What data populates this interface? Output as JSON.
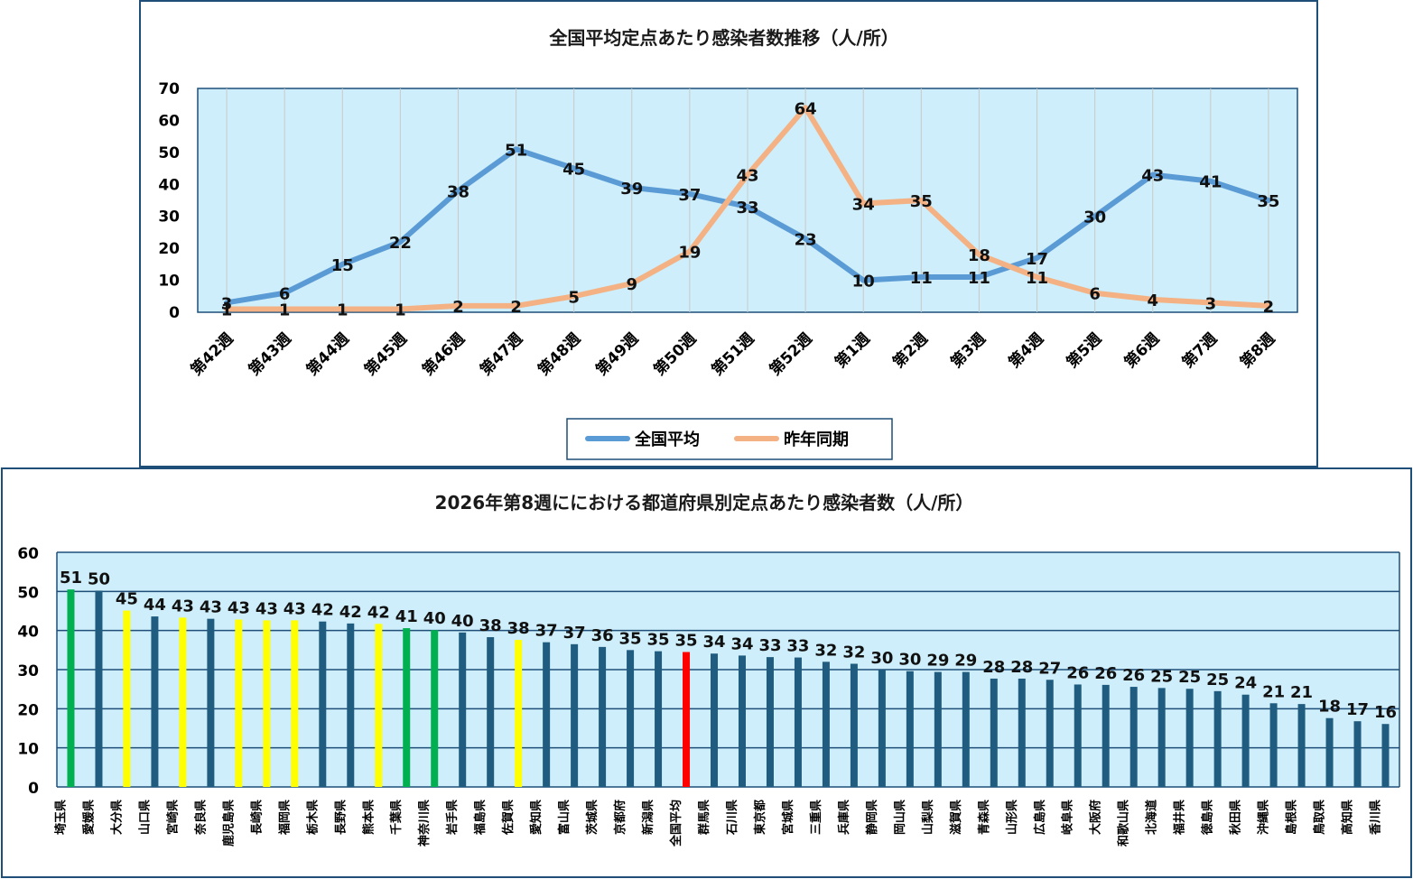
{
  "colors": {
    "plot_bg": "#cdeefa",
    "navy": "#1f4e79",
    "national_avg_line": "#5b9bd5",
    "last_year_line": "#f4b183",
    "bar_default": "#1f5c7f",
    "bar_green": "#00b050",
    "bar_yellow": "#ffff00",
    "bar_red": "#ff0000"
  },
  "chart_data": [
    {
      "type": "line",
      "title": "全国平均定点あたり感染者数推移（人/所）",
      "x": [
        "第42週",
        "第43週",
        "第44週",
        "第45週",
        "第46週",
        "第47週",
        "第48週",
        "第49週",
        "第50週",
        "第51週",
        "第52週",
        "第1週",
        "第2週",
        "第3週",
        "第4週",
        "第5週",
        "第6週",
        "第7週",
        "第8週"
      ],
      "series": [
        {
          "name": "全国平均",
          "color": "#5b9bd5",
          "values": [
            3,
            6,
            15,
            22,
            38,
            51,
            45,
            39,
            37,
            33,
            23,
            10,
            11,
            11,
            17,
            30,
            43,
            41,
            35
          ]
        },
        {
          "name": "昨年同期",
          "color": "#f4b183",
          "values": [
            1,
            1,
            1,
            1,
            2,
            2,
            5,
            9,
            19,
            43,
            64,
            34,
            35,
            18,
            11,
            6,
            4,
            3,
            2
          ]
        }
      ],
      "ylim": [
        0,
        70
      ],
      "yticks": [
        0,
        10,
        20,
        30,
        40,
        50,
        60,
        70
      ],
      "grid": false,
      "legend": "bottom"
    },
    {
      "type": "bar",
      "title": "2026年第8週ににおける都道府県別定点あたり感染者数（人/所）",
      "categories": [
        "埼玉県",
        "愛媛県",
        "大分県",
        "山口県",
        "宮崎県",
        "奈良県",
        "鹿児島県",
        "長崎県",
        "福岡県",
        "栃木県",
        "長野県",
        "熊本県",
        "千葉県",
        "神奈川県",
        "岩手県",
        "福島県",
        "佐賀県",
        "愛知県",
        "富山県",
        "茨城県",
        "京都府",
        "新潟県",
        "全国平均",
        "群馬県",
        "石川県",
        "東京都",
        "宮城県",
        "三重県",
        "兵庫県",
        "静岡県",
        "岡山県",
        "山梨県",
        "滋賀県",
        "青森県",
        "山形県",
        "広島県",
        "岐阜県",
        "大阪府",
        "和歌山県",
        "北海道",
        "福井県",
        "徳島県",
        "秋田県",
        "沖縄県",
        "島根県",
        "鳥取県",
        "高知県",
        "香川県"
      ],
      "values": [
        51,
        50,
        45,
        44,
        43,
        43,
        43,
        43,
        43,
        42,
        42,
        42,
        41,
        40,
        40,
        38,
        38,
        37,
        37,
        36,
        35,
        35,
        35,
        34,
        34,
        33,
        33,
        32,
        32,
        30,
        30,
        29,
        29,
        28,
        28,
        27,
        26,
        26,
        26,
        25,
        25,
        25,
        24,
        21,
        21,
        18,
        17,
        16
      ],
      "plot_values": [
        50.5,
        50.2,
        45.1,
        43.6,
        43.3,
        43.0,
        42.8,
        42.6,
        42.6,
        42.3,
        41.8,
        41.7,
        40.6,
        40.1,
        39.5,
        38.3,
        37.6,
        37.0,
        36.5,
        35.8,
        35.0,
        34.7,
        34.5,
        34.1,
        33.6,
        33.2,
        33.1,
        32.0,
        31.5,
        30.0,
        29.6,
        29.4,
        29.4,
        27.7,
        27.7,
        27.4,
        26.2,
        26.1,
        25.6,
        25.3,
        25.1,
        24.5,
        23.6,
        21.4,
        21.2,
        17.6,
        16.8,
        16.1
      ],
      "bar_colors": [
        "#00b050",
        "#1f5c7f",
        "#ffff00",
        "#1f5c7f",
        "#ffff00",
        "#1f5c7f",
        "#ffff00",
        "#ffff00",
        "#ffff00",
        "#1f5c7f",
        "#1f5c7f",
        "#ffff00",
        "#00b050",
        "#00b050",
        "#1f5c7f",
        "#1f5c7f",
        "#ffff00",
        "#1f5c7f",
        "#1f5c7f",
        "#1f5c7f",
        "#1f5c7f",
        "#1f5c7f",
        "#ff0000",
        "#1f5c7f",
        "#1f5c7f",
        "#1f5c7f",
        "#1f5c7f",
        "#1f5c7f",
        "#1f5c7f",
        "#1f5c7f",
        "#1f5c7f",
        "#1f5c7f",
        "#1f5c7f",
        "#1f5c7f",
        "#1f5c7f",
        "#1f5c7f",
        "#1f5c7f",
        "#1f5c7f",
        "#1f5c7f",
        "#1f5c7f",
        "#1f5c7f",
        "#1f5c7f",
        "#1f5c7f",
        "#1f5c7f",
        "#1f5c7f",
        "#1f5c7f",
        "#1f5c7f",
        "#1f5c7f"
      ],
      "ylim": [
        0,
        60
      ],
      "yticks": [
        0,
        10,
        20,
        30,
        40,
        50,
        60
      ],
      "grid": true
    }
  ]
}
